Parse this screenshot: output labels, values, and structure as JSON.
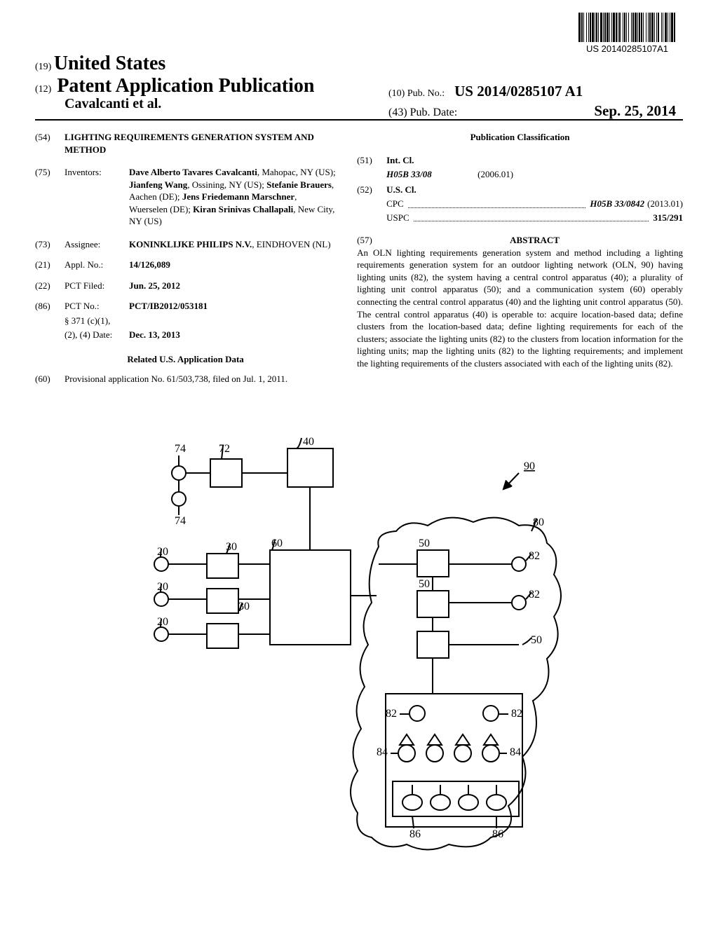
{
  "barcode_number": "US 20140285107A1",
  "header": {
    "authority_num": "(19)",
    "authority": "United States",
    "pub_type_num": "(12)",
    "pub_type": "Patent Application Publication",
    "authors": "Cavalcanti et al.",
    "pub_no_num": "(10)",
    "pub_no_label": "Pub. No.:",
    "pub_no": "US 2014/0285107 A1",
    "pub_date_num": "(43)",
    "pub_date_label": "Pub. Date:",
    "pub_date": "Sep. 25, 2014"
  },
  "left": {
    "title_num": "(54)",
    "title": "LIGHTING REQUIREMENTS GENERATION SYSTEM AND METHOD",
    "inventors_num": "(75)",
    "inventors_label": "Inventors:",
    "inventors_html": "Dave Alberto Tavares Cavalcanti|, Mahopac, NY (US); |Jianfeng Wang|, Ossining, NY (US); |Stefanie Brauers|, Aachen (DE); |Jens Friedemann Marschner|, Wuerselen (DE); |Kiran Srinivas Challapali|, New City, NY (US)",
    "assignee_num": "(73)",
    "assignee_label": "Assignee:",
    "assignee_name": "KONINKLIJKE PHILIPS N.V.",
    "assignee_loc": "EINDHOVEN (NL)",
    "appl_num": "(21)",
    "appl_label": "Appl. No.:",
    "appl_value": "14/126,089",
    "filed_num": "(22)",
    "filed_label": "PCT Filed:",
    "filed_value": "Jun. 25, 2012",
    "pct_num": "(86)",
    "pct_label": "PCT No.:",
    "pct_value": "PCT/IB2012/053181",
    "section_label": "§ 371 (c)(1),",
    "date_label": "(2), (4) Date:",
    "date_value": "Dec. 13, 2013",
    "related_heading": "Related U.S. Application Data",
    "provisional_num": "(60)",
    "provisional_text": "Provisional application No. 61/503,738, filed on Jul. 1, 2011."
  },
  "right": {
    "classification_heading": "Publication Classification",
    "int_num": "(51)",
    "int_label": "Int. Cl.",
    "int_class": "H05B 33/08",
    "int_year": "(2006.01)",
    "us_num": "(52)",
    "us_label": "U.S. Cl.",
    "cpc_label": "CPC",
    "cpc_value": "H05B 33/0842",
    "cpc_year": "(2013.01)",
    "uspc_label": "USPC",
    "uspc_value": "315/291",
    "abstract_num": "(57)",
    "abstract_heading": "ABSTRACT",
    "abstract": "An OLN lighting requirements generation system and method including a lighting requirements generation system for an outdoor lighting network (OLN, 90) having lighting units (82), the system having a central control apparatus (40); a plurality of lighting unit control apparatus (50); and a communication system (60) operably connecting the central control apparatus (40) and the lighting unit control apparatus (50). The central control apparatus (40) is operable to: acquire location-based data; define clusters from the location-based data; define lighting requirements for each of the clusters; associate the lighting units (82) to the clusters from location information for the lighting units; map the lighting units (82) to the lighting requirements; and implement the lighting requirements of the clusters associated with each of the lighting units (82)."
  },
  "diagram": {
    "labels": {
      "n40": "40",
      "n60": "60",
      "n72": "72",
      "n74": "74",
      "n20": "20",
      "n30": "30",
      "n50": "50",
      "n80": "80",
      "n82": "82",
      "n84": "84",
      "n86": "86",
      "n90": "90"
    }
  },
  "styles": {
    "barcode_bar_widths": [
      3,
      1,
      2,
      1,
      1,
      3,
      1,
      2,
      1,
      1,
      2,
      1,
      3,
      1,
      1,
      1,
      2,
      1,
      1,
      2,
      3,
      1,
      1,
      1,
      2,
      1,
      3,
      1,
      1,
      2,
      1,
      1,
      3,
      1,
      2,
      1,
      1,
      1,
      2,
      3,
      1,
      1,
      2,
      1,
      1,
      2,
      1,
      3,
      1,
      1,
      2,
      1,
      3,
      1,
      1,
      1,
      2,
      1,
      2,
      1,
      1,
      3,
      1,
      2,
      1,
      1,
      2,
      1,
      3,
      1,
      1,
      2,
      1,
      1,
      2,
      3,
      1,
      1,
      1,
      2,
      3,
      1,
      1,
      2,
      1,
      1,
      3,
      1,
      2,
      1
    ],
    "stroke_color": "#000000",
    "stroke_width": 2
  }
}
